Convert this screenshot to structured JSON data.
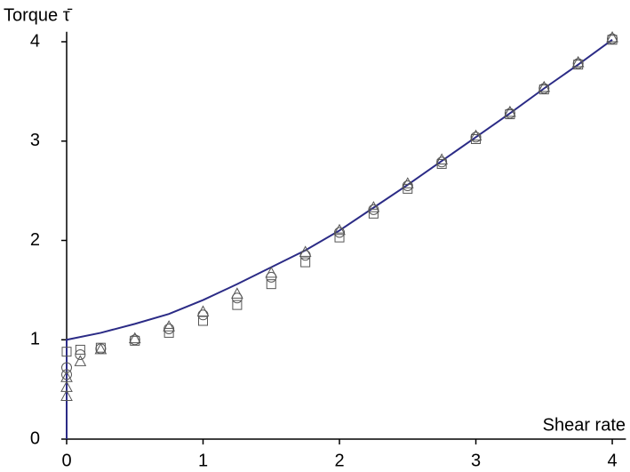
{
  "chart_data": {
    "type": "line",
    "ylabel": "Torque τ̄",
    "xlabel": "Shear rate",
    "xlim": [
      0,
      4.1
    ],
    "ylim": [
      0,
      4.1
    ],
    "xticks": [
      0,
      1,
      2,
      3,
      4
    ],
    "yticks": [
      0,
      1,
      2,
      3,
      4
    ],
    "grid": false,
    "series": [
      {
        "color": "#2b2b86",
        "marker": "none",
        "x": [
          0,
          0,
          0.25,
          0.5,
          0.75,
          1,
          1.25,
          1.5,
          1.75,
          2,
          2.25,
          2.5,
          2.75,
          3,
          3.25,
          3.5,
          3.75,
          4
        ],
        "values": [
          0,
          1,
          1.07,
          1.16,
          1.26,
          1.4,
          1.56,
          1.73,
          1.9,
          2.1,
          2.33,
          2.56,
          2.8,
          3.04,
          3.28,
          3.53,
          3.77,
          4.02
        ]
      },
      {
        "color": "#555555",
        "marker": "square",
        "x": [
          0,
          0.1,
          0.25,
          0.5,
          0.75,
          1,
          1.25,
          1.5,
          1.75,
          2,
          2.25,
          2.5,
          2.75,
          3,
          3.25,
          3.5,
          3.75,
          4
        ],
        "values": [
          0.88,
          0.9,
          0.92,
          0.99,
          1.07,
          1.19,
          1.35,
          1.56,
          1.78,
          2.03,
          2.27,
          2.52,
          2.77,
          3.02,
          3.27,
          3.52,
          3.77,
          4.02
        ]
      },
      {
        "color": "#555555",
        "marker": "circle",
        "x": [
          0,
          0,
          0.1,
          0.25,
          0.5,
          0.75,
          1,
          1.25,
          1.5,
          1.75,
          2,
          2.25,
          2.5,
          2.75,
          3,
          3.25,
          3.5,
          3.75,
          4
        ],
        "values": [
          0.65,
          0.72,
          0.85,
          0.91,
          1.0,
          1.11,
          1.25,
          1.42,
          1.63,
          1.85,
          2.08,
          2.31,
          2.55,
          2.79,
          3.04,
          3.28,
          3.53,
          3.78,
          4.03
        ]
      },
      {
        "color": "#555555",
        "marker": "triangle",
        "x": [
          0,
          0,
          0,
          0.1,
          0.25,
          0.5,
          0.75,
          1,
          1.25,
          1.5,
          1.75,
          2,
          2.25,
          2.5,
          2.75,
          3,
          3.25,
          3.5,
          3.75,
          4
        ],
        "values": [
          0.43,
          0.52,
          0.62,
          0.78,
          0.9,
          1.01,
          1.13,
          1.28,
          1.46,
          1.67,
          1.88,
          2.1,
          2.33,
          2.57,
          2.81,
          3.05,
          3.29,
          3.54,
          3.79,
          4.04
        ]
      }
    ]
  }
}
